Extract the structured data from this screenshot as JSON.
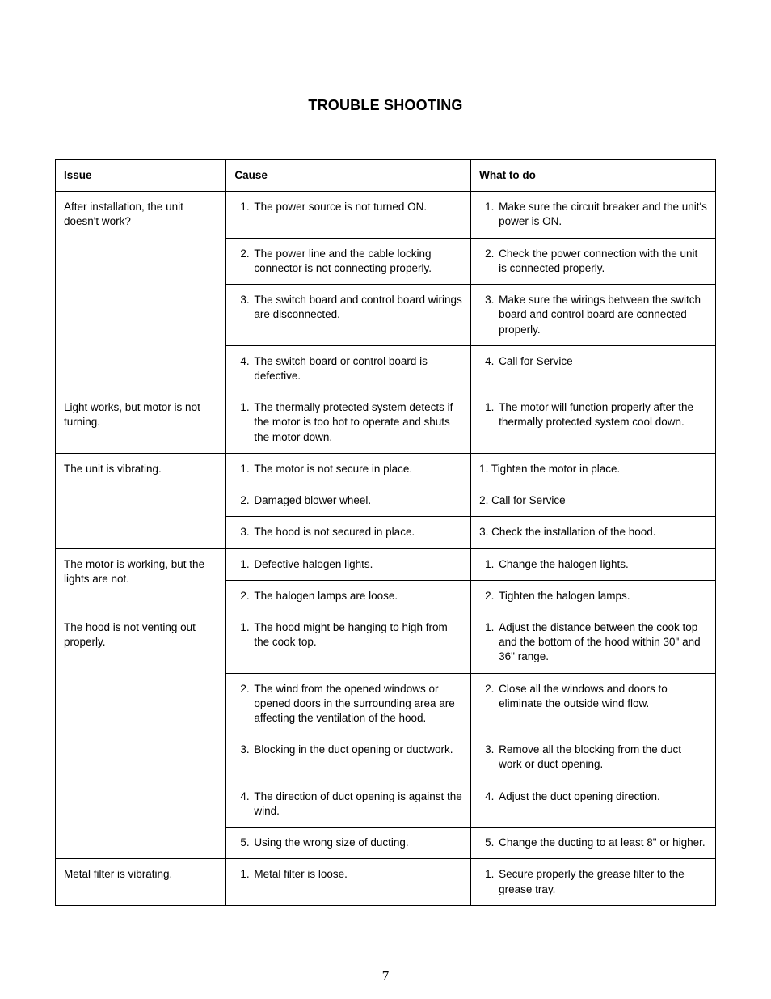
{
  "title": "TROUBLE SHOOTING",
  "page_number": "7",
  "headers": {
    "issue": "Issue",
    "cause": "Cause",
    "action": "What to do"
  },
  "rows": {
    "install": {
      "issue": "After installation, the unit doesn't work?",
      "c1": "The power source is not turned ON.",
      "a1": "Make sure the circuit breaker and the unit's power is ON.",
      "c2": "The power line and the cable locking connector is not connecting properly.",
      "a2": "Check the power connection with the unit is connected properly.",
      "c3": "The switch board and control board wirings are disconnected.",
      "a3": "Make sure the wirings between the switch board and control board are connected properly.",
      "c4": "The switch board or control board is defective.",
      "a4": "Call for Service"
    },
    "light_motor": {
      "issue": "Light works, but motor is not turning.",
      "c1": "The thermally protected system detects if the motor is too hot to operate and shuts the motor down.",
      "a1": "The motor will function properly after the thermally protected system cool down."
    },
    "vibrating": {
      "issue": "The unit is vibrating.",
      "c1": "The motor is not secure in place.",
      "a1": "1. Tighten the motor in place.",
      "c2": "Damaged blower wheel.",
      "a2": "2. Call for Service",
      "c3": "The hood is not secured in place.",
      "a3": "3. Check the installation of the hood."
    },
    "motor_no_light": {
      "issue": "The motor is working, but the lights are not.",
      "c1": "Defective halogen lights.",
      "a1": "Change the halogen lights.",
      "c2": "The halogen lamps are loose.",
      "a2": "Tighten the halogen lamps."
    },
    "venting": {
      "issue": "The hood is not venting out properly.",
      "c1": "The hood might be hanging to high from the cook top.",
      "a1": "Adjust the distance between the cook top and the bottom of the hood within 30\" and 36\" range.",
      "c2": "The wind from the opened windows or opened doors in the surrounding area are affecting the ventilation of the hood.",
      "a2": "Close all the windows and doors to eliminate the outside wind flow.",
      "c3": "Blocking in the duct opening or ductwork.",
      "a3": "Remove all the blocking from the duct work or duct opening.",
      "c4": "The direction of duct opening is against the wind.",
      "a4": "Adjust the duct opening direction.",
      "c5": "Using the wrong size of ducting.",
      "a5": "Change the ducting to at least 8\" or higher."
    },
    "filter_vibrating": {
      "issue": "Metal filter is vibrating.",
      "c1": "Metal filter is loose.",
      "a1": "Secure properly the grease filter to the grease tray."
    }
  }
}
